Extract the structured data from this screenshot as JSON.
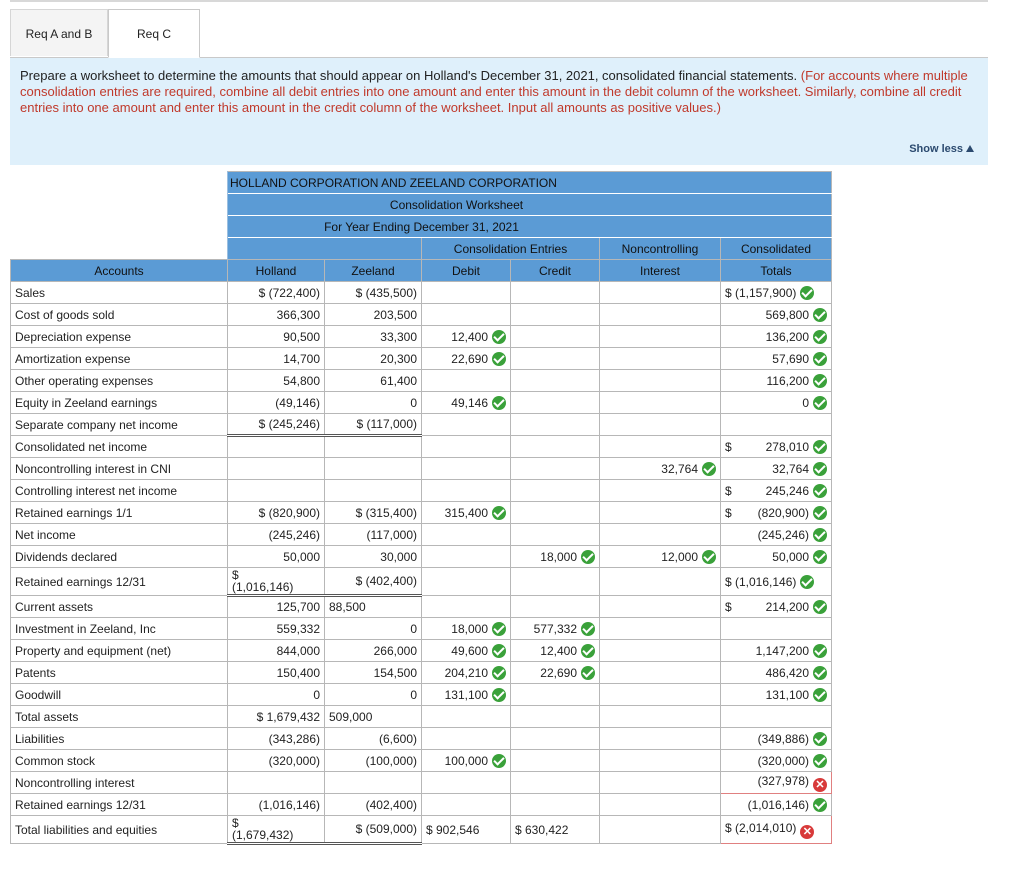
{
  "tabs": [
    "Req A and B",
    "Req C"
  ],
  "instructions": {
    "text": "Prepare a worksheet to determine the amounts that should appear on Holland's December 31, 2021, consolidated financial statements.",
    "note": "(For accounts where multiple consolidation entries are required, combine all debit entries into one amount and enter this amount in the debit column of the worksheet. Similarly, combine all credit entries into one amount and enter this amount in the credit column of the worksheet. Input all amounts as positive values.)",
    "show_less": "Show less"
  },
  "worksheet": {
    "title1": "HOLLAND CORPORATION AND ZEELAND CORPORATION",
    "title2": "Consolidation Worksheet",
    "title3": "For Year Ending December 31, 2021",
    "hdr_cons": "Consolidation Entries",
    "hdr_nci_1": "Noncontrolling",
    "hdr_nci_2": "Interest",
    "hdr_tot_1": "Consolidated",
    "hdr_tot_2": "Totals",
    "col_accounts": "Accounts",
    "col_holland": "Holland",
    "col_zeeland": "Zeeland",
    "col_debit": "Debit",
    "col_credit": "Credit"
  },
  "rows": [
    {
      "a": "Sales",
      "h": "$ (722,400)",
      "z": "$ (435,500)",
      "d": "",
      "c": "",
      "n": "",
      "t": "$  (1,157,900)"
    },
    {
      "a": "Cost of goods sold",
      "h": "366,300",
      "z": "203,500",
      "d": "",
      "c": "",
      "n": "",
      "t": "569,800"
    },
    {
      "a": "Depreciation expense",
      "h": "90,500",
      "z": "33,300",
      "d": "12,400",
      "c": "",
      "n": "",
      "t": "136,200"
    },
    {
      "a": "Amortization expense",
      "h": "14,700",
      "z": "20,300",
      "d": "22,690",
      "c": "",
      "n": "",
      "t": "57,690"
    },
    {
      "a": "Other operating expenses",
      "h": "54,800",
      "z": "61,400",
      "d": "",
      "c": "",
      "n": "",
      "t": "116,200"
    },
    {
      "a": "Equity in Zeeland earnings",
      "h": "(49,146)",
      "z": "0",
      "d": "49,146",
      "c": "",
      "n": "",
      "t": "0"
    },
    {
      "a": "Separate company net income",
      "h": "$ (245,246)",
      "z": "$ (117,000)",
      "d": "",
      "c": "",
      "n": "",
      "t": ""
    },
    {
      "a": "Consolidated net income",
      "h": "",
      "z": "",
      "d": "",
      "c": "",
      "n": "",
      "t": "278,010"
    },
    {
      "a": "Noncontrolling interest in CNI",
      "h": "",
      "z": "",
      "d": "",
      "c": "",
      "n": "32,764",
      "t": "32,764"
    },
    {
      "a": "Controlling interest net income",
      "h": "",
      "z": "",
      "d": "",
      "c": "",
      "n": "",
      "t": "245,246"
    },
    {
      "a": "Retained earnings 1/1",
      "h": "$ (820,900)",
      "z": "$ (315,400)",
      "d": "315,400",
      "c": "",
      "n": "",
      "t": "(820,900)"
    },
    {
      "a": "Net income",
      "h": "(245,246)",
      "z": "(117,000)",
      "d": "",
      "c": "",
      "n": "",
      "t": "(245,246)"
    },
    {
      "a": "Dividends declared",
      "h": "50,000",
      "z": "30,000",
      "d": "",
      "c": "18,000",
      "n": "12,000",
      "t": "50,000"
    },
    {
      "a": "Retained earnings 12/31",
      "h1": "$",
      "h2": "(1,016,146)",
      "z": "$ (402,400)",
      "d": "",
      "c": "",
      "n": "",
      "t": "$  (1,016,146)"
    },
    {
      "a": "Current assets",
      "h": "125,700",
      "z": "88,500",
      "d": "",
      "c": "",
      "n": "",
      "t": "214,200"
    },
    {
      "a": "Investment in Zeeland, Inc",
      "h": "559,332",
      "z": "0",
      "d": "18,000",
      "c": "577,332",
      "n": "",
      "t": ""
    },
    {
      "a": "Property and equipment (net)",
      "h": "844,000",
      "z": "266,000",
      "d": "49,600",
      "c": "12,400",
      "n": "",
      "t": "1,147,200"
    },
    {
      "a": "Patents",
      "h": "150,400",
      "z": "154,500",
      "d": "204,210",
      "c": "22,690",
      "n": "",
      "t": "486,420"
    },
    {
      "a": "Goodwill",
      "h": "0",
      "z": "0",
      "d": "131,100",
      "c": "",
      "n": "",
      "t": "131,100"
    },
    {
      "a": "Total assets",
      "h": "$ 1,679,432",
      "z": "509,000",
      "d": "",
      "c": "",
      "n": "",
      "t": ""
    },
    {
      "a": "Liabilities",
      "h": "(343,286)",
      "z": "(6,600)",
      "d": "",
      "c": "",
      "n": "",
      "t": "(349,886)"
    },
    {
      "a": "Common stock",
      "h": "(320,000)",
      "z": "(100,000)",
      "d": "100,000",
      "c": "",
      "n": "",
      "t": "(320,000)"
    },
    {
      "a": "Noncontrolling interest",
      "h": "",
      "z": "",
      "d": "",
      "c": "",
      "n": "",
      "t": "(327,978)"
    },
    {
      "a": "Retained earnings 12/31",
      "h": "(1,016,146)",
      "z": "(402,400)",
      "d": "",
      "c": "",
      "n": "",
      "t": "(1,016,146)"
    },
    {
      "a": "Total liabilities and equities",
      "h1": "$",
      "h2": "(1,679,432)",
      "z": "$ (509,000)",
      "d": "$  902,546",
      "c": "$  630,422",
      "n": "",
      "t": "$  (2,014,010)"
    }
  ]
}
